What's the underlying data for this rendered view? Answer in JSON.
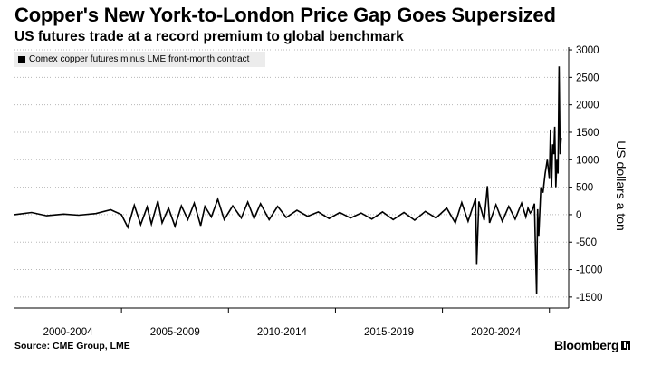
{
  "header": {
    "title": "Copper's New York-to-London Price Gap Goes Supersized",
    "subtitle": "US futures trade at a record premium to global benchmark"
  },
  "footer": {
    "source": "Source: CME Group, LME",
    "brand": "Bloomberg"
  },
  "colors": {
    "line": "#000000",
    "grid": "#b8b8b8",
    "legend_bg": "#ececec"
  },
  "icons": {
    "brand_icon": "bloomberg-terminal-icon"
  },
  "chart_data": {
    "type": "line",
    "title": "Copper's New York-to-London Price Gap Goes Supersized",
    "subtitle": "US futures trade at a record premium to global benchmark",
    "ylabel": "US dollars a ton",
    "xlabel": "",
    "y_axis_position": "right",
    "legend_position": "top-left",
    "grid": "horizontal-dotted",
    "xlim": [
      2000.0,
      2025.9
    ],
    "ylim": [
      -1700,
      3050
    ],
    "y_ticks": [
      3000,
      2500,
      2000,
      1500,
      1000,
      500,
      0,
      -500,
      -1000,
      -1500
    ],
    "y_tick_labels": [
      "3000",
      "2500",
      "2000",
      "1500",
      "1000",
      "500",
      "0",
      "-500",
      "-1000",
      "-1500"
    ],
    "x_tick_labels": [
      "2000-2004",
      "2005-2009",
      "2010-2014",
      "2015-2019",
      "2020-2024"
    ],
    "x_tick_centers": [
      2002.5,
      2007.5,
      2012.5,
      2017.5,
      2022.5
    ],
    "series": [
      {
        "name": "Comex copper futures minus LME front-month contract",
        "x": [
          2000.0,
          2000.8,
          2001.5,
          2002.3,
          2003.0,
          2003.8,
          2004.5,
          2005.0,
          2005.3,
          2005.6,
          2005.9,
          2006.2,
          2006.4,
          2006.7,
          2006.9,
          2007.2,
          2007.5,
          2007.8,
          2008.1,
          2008.4,
          2008.7,
          2008.9,
          2009.2,
          2009.5,
          2009.8,
          2010.2,
          2010.6,
          2010.9,
          2011.2,
          2011.5,
          2011.9,
          2012.3,
          2012.7,
          2013.2,
          2013.7,
          2014.2,
          2014.7,
          2015.2,
          2015.7,
          2016.2,
          2016.7,
          2017.2,
          2017.7,
          2018.2,
          2018.7,
          2019.2,
          2019.7,
          2020.2,
          2020.6,
          2020.9,
          2021.2,
          2021.55,
          2021.6,
          2021.7,
          2021.95,
          2022.1,
          2022.2,
          2022.5,
          2022.8,
          2023.1,
          2023.4,
          2023.7,
          2023.9,
          2024.0,
          2024.1,
          2024.2,
          2024.3,
          2024.35,
          2024.4,
          2024.45,
          2024.5,
          2024.6,
          2024.7,
          2024.8,
          2024.9,
          2025.0,
          2025.05,
          2025.1,
          2025.15,
          2025.2,
          2025.25,
          2025.3,
          2025.35,
          2025.4,
          2025.45,
          2025.5,
          2025.55
        ],
        "y": [
          0,
          40,
          -20,
          10,
          -10,
          20,
          90,
          0,
          -230,
          170,
          -180,
          140,
          -170,
          250,
          -150,
          120,
          -210,
          160,
          -90,
          210,
          -200,
          150,
          -40,
          280,
          -90,
          160,
          -60,
          230,
          -70,
          200,
          -90,
          150,
          -50,
          80,
          -30,
          50,
          -70,
          40,
          -60,
          30,
          -80,
          50,
          -90,
          40,
          -100,
          60,
          -60,
          120,
          -150,
          220,
          -120,
          300,
          -900,
          240,
          -100,
          520,
          -150,
          180,
          -120,
          150,
          -80,
          210,
          -40,
          120,
          30,
          80,
          200,
          -700,
          -1450,
          100,
          -400,
          500,
          400,
          750,
          1000,
          650,
          1550,
          500,
          1280,
          1100,
          1600,
          500,
          1000,
          750,
          2700,
          1100,
          1400
        ]
      }
    ]
  }
}
